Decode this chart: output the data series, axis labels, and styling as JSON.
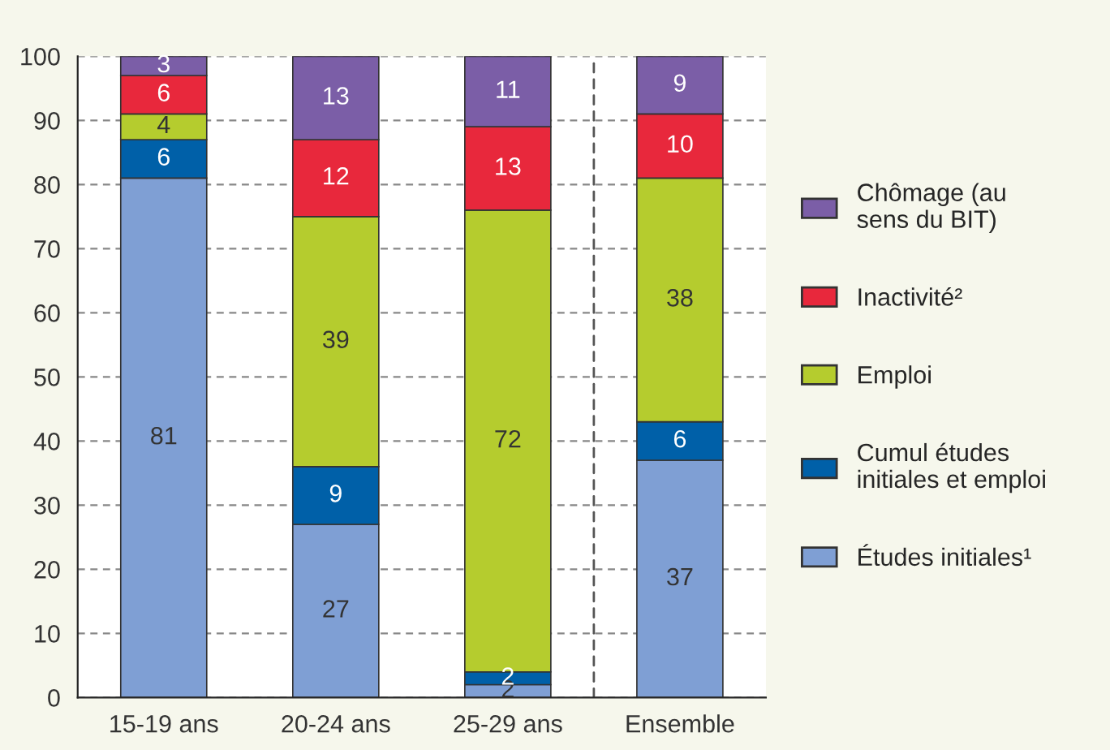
{
  "chart_data": {
    "type": "bar",
    "stacked": true,
    "categories": [
      "15-19 ans",
      "20-24 ans",
      "25-29 ans",
      "Ensemble"
    ],
    "series": [
      {
        "name": "Études initiales¹",
        "color": "#7f9fd4",
        "values": [
          81,
          27,
          2,
          37
        ]
      },
      {
        "name": "Cumul études initiales et emploi",
        "color": "#0060a8",
        "values": [
          6,
          9,
          2,
          6
        ]
      },
      {
        "name": "Emploi",
        "color": "#b5cc2e",
        "values": [
          4,
          39,
          72,
          38
        ]
      },
      {
        "name": "Inactivité²",
        "color": "#e8283c",
        "values": [
          6,
          12,
          13,
          10
        ]
      },
      {
        "name": "Chômage (au sens du BIT)",
        "color": "#7b5ea7",
        "values": [
          3,
          13,
          11,
          9
        ]
      }
    ],
    "ylim": [
      0,
      100
    ],
    "yticks": [
      0,
      10,
      20,
      30,
      40,
      50,
      60,
      70,
      80,
      90,
      100
    ],
    "grid": "y",
    "legend": "right",
    "data_labels": true
  }
}
